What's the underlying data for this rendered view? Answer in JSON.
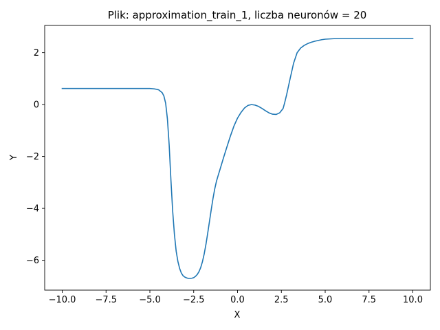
{
  "chart_data": {
    "type": "line",
    "title": "Plik: approximation_train_1, liczba neuronów = 20",
    "xlabel": "X",
    "ylabel": "Y",
    "xlim": [
      -11.0,
      11.0
    ],
    "ylim": [
      -7.15,
      3.05
    ],
    "grid": false,
    "legend": "none",
    "xticks": [
      -10.0,
      -7.5,
      -5.0,
      -2.5,
      0.0,
      2.5,
      5.0,
      7.5,
      10.0
    ],
    "xtick_labels": [
      "−10.0",
      "−7.5",
      "−5.0",
      "−2.5",
      "0.0",
      "2.5",
      "5.0",
      "7.5",
      "10.0"
    ],
    "yticks": [
      -6,
      -4,
      -2,
      0,
      2
    ],
    "ytick_labels": [
      "−6",
      "−4",
      "−2",
      "0",
      "2"
    ],
    "series": [
      {
        "color": "#1f77b4",
        "x": [
          -10.0,
          -8.0,
          -6.0,
          -5.0,
          -4.7,
          -4.5,
          -4.3,
          -4.2,
          -4.1,
          -4.0,
          -3.9,
          -3.8,
          -3.7,
          -3.6,
          -3.5,
          -3.4,
          -3.3,
          -3.2,
          -3.1,
          -3.0,
          -2.9,
          -2.8,
          -2.7,
          -2.6,
          -2.5,
          -2.4,
          -2.3,
          -2.2,
          -2.1,
          -2.0,
          -1.9,
          -1.8,
          -1.7,
          -1.6,
          -1.5,
          -1.4,
          -1.3,
          -1.2,
          -1.1,
          -1.0,
          -0.8,
          -0.6,
          -0.4,
          -0.2,
          0.0,
          0.2,
          0.4,
          0.6,
          0.8,
          1.0,
          1.2,
          1.4,
          1.6,
          1.8,
          2.0,
          2.2,
          2.4,
          2.6,
          2.7,
          2.8,
          3.0,
          3.2,
          3.4,
          3.6,
          3.8,
          4.0,
          4.2,
          4.4,
          4.6,
          4.8,
          5.0,
          5.5,
          6.0,
          7.0,
          8.0,
          9.0,
          10.0
        ],
        "y": [
          0.62,
          0.62,
          0.62,
          0.62,
          0.6,
          0.57,
          0.46,
          0.33,
          0.05,
          -0.55,
          -1.55,
          -2.9,
          -4.1,
          -5.0,
          -5.65,
          -6.05,
          -6.32,
          -6.5,
          -6.6,
          -6.65,
          -6.68,
          -6.7,
          -6.7,
          -6.69,
          -6.67,
          -6.62,
          -6.55,
          -6.44,
          -6.28,
          -6.05,
          -5.75,
          -5.38,
          -4.95,
          -4.5,
          -4.05,
          -3.62,
          -3.25,
          -2.95,
          -2.72,
          -2.5,
          -2.05,
          -1.62,
          -1.2,
          -0.82,
          -0.52,
          -0.3,
          -0.13,
          -0.03,
          0.0,
          -0.02,
          -0.07,
          -0.15,
          -0.24,
          -0.32,
          -0.37,
          -0.38,
          -0.32,
          -0.15,
          0.1,
          0.38,
          1.0,
          1.6,
          2.0,
          2.18,
          2.28,
          2.35,
          2.4,
          2.44,
          2.47,
          2.5,
          2.52,
          2.54,
          2.55,
          2.55,
          2.55,
          2.55,
          2.55
        ]
      }
    ]
  }
}
